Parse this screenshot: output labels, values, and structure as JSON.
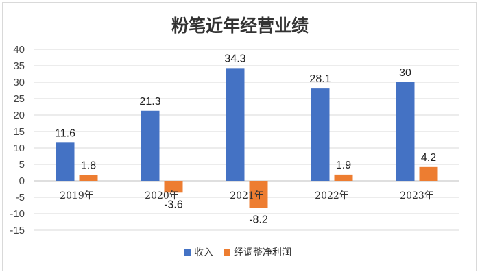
{
  "chart_data": {
    "type": "bar",
    "title": "粉笔近年经营业绩",
    "categories": [
      "2019年",
      "2020年",
      "2021年",
      "2022年",
      "2023年"
    ],
    "series": [
      {
        "name": "收入",
        "values": [
          11.6,
          21.3,
          34.3,
          28.1,
          30
        ],
        "color": "#4472C4"
      },
      {
        "name": "经调整净利润",
        "values": [
          1.8,
          -3.6,
          -8.2,
          1.9,
          4.2
        ],
        "color": "#ED7D31"
      }
    ],
    "ylim": [
      -15,
      40
    ],
    "yticks": [
      40,
      35,
      30,
      25,
      20,
      15,
      10,
      5,
      0,
      -5,
      -10,
      -15
    ],
    "grid": true,
    "legend_position": "bottom",
    "xlabel": "",
    "ylabel": ""
  }
}
